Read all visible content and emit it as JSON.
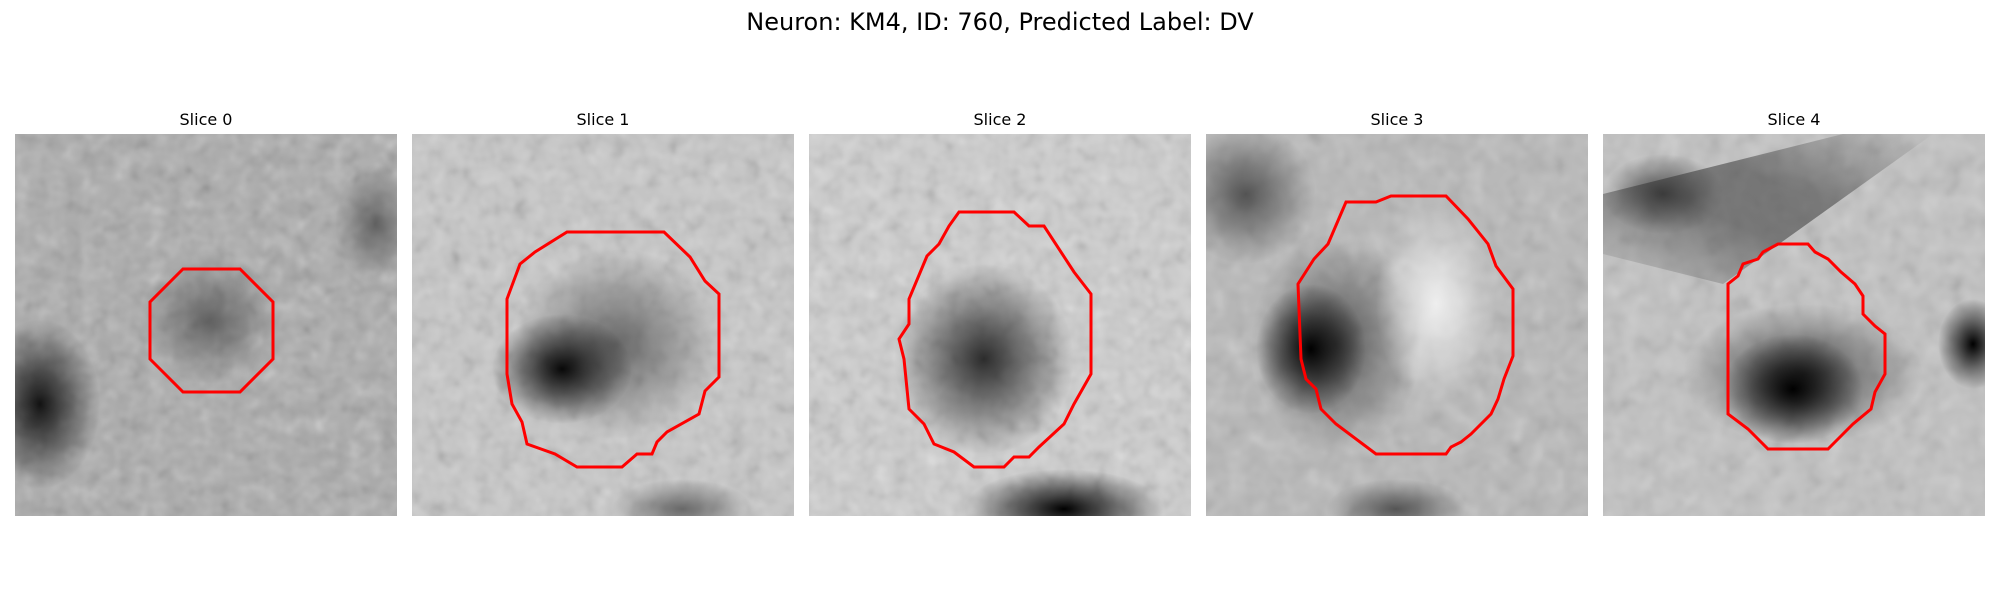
{
  "figure": {
    "title": "Neuron: KM4, ID: 760, Predicted Label: DV"
  },
  "slices": [
    {
      "label": "Slice 0"
    },
    {
      "label": "Slice 1"
    },
    {
      "label": "Slice 2"
    },
    {
      "label": "Slice 3"
    },
    {
      "label": "Slice 4"
    }
  ],
  "colors": {
    "contour": "#ff0000",
    "background": "#ffffff"
  }
}
